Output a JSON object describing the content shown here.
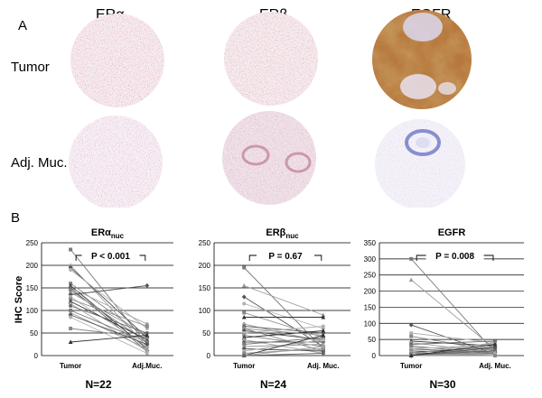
{
  "panel_a": {
    "letter": "A",
    "markers": [
      "ERα",
      "ERβ",
      "EGFR"
    ],
    "rows": [
      "Tumor",
      "Adj. Muc."
    ]
  },
  "panel_b": {
    "letter": "B",
    "y_axis_title": "IHC Score"
  },
  "chart_data": [
    {
      "type": "line",
      "title": "ERα",
      "title_subscript": "nuc",
      "categories": [
        "Tumor",
        "Adj.Muc."
      ],
      "ylabel": "IHC Score",
      "ylim": [
        0,
        250
      ],
      "yticks": [
        0,
        50,
        100,
        150,
        200,
        250
      ],
      "grid": true,
      "annotation": "P < 0.001",
      "n_label": "N=22",
      "pairs": [
        [
          235,
          25
        ],
        [
          200,
          20
        ],
        [
          195,
          40
        ],
        [
          190,
          60
        ],
        [
          160,
          40
        ],
        [
          155,
          15
        ],
        [
          150,
          70
        ],
        [
          150,
          10
        ],
        [
          145,
          30
        ],
        [
          140,
          45
        ],
        [
          135,
          155
        ],
        [
          130,
          20
        ],
        [
          125,
          65
        ],
        [
          120,
          35
        ],
        [
          115,
          10
        ],
        [
          110,
          50
        ],
        [
          100,
          30
        ],
        [
          95,
          15
        ],
        [
          90,
          25
        ],
        [
          85,
          5
        ],
        [
          60,
          40
        ],
        [
          30,
          45
        ]
      ]
    },
    {
      "type": "line",
      "title": "ERβ",
      "title_subscript": "nuc",
      "categories": [
        "Tumor",
        "Adj. Muc."
      ],
      "ylabel": "",
      "ylim": [
        0,
        250
      ],
      "yticks": [
        0,
        50,
        100,
        150,
        200,
        250
      ],
      "grid": true,
      "annotation": "P = 0.67",
      "n_label": "N=24",
      "pairs": [
        [
          195,
          15
        ],
        [
          155,
          90
        ],
        [
          130,
          20
        ],
        [
          115,
          60
        ],
        [
          95,
          40
        ],
        [
          85,
          85
        ],
        [
          70,
          30
        ],
        [
          65,
          50
        ],
        [
          60,
          10
        ],
        [
          60,
          45
        ],
        [
          55,
          35
        ],
        [
          50,
          65
        ],
        [
          45,
          20
        ],
        [
          40,
          55
        ],
        [
          35,
          5
        ],
        [
          30,
          30
        ],
        [
          25,
          40
        ],
        [
          20,
          25
        ],
        [
          15,
          10
        ],
        [
          10,
          35
        ],
        [
          5,
          15
        ],
        [
          0,
          45
        ],
        [
          0,
          20
        ],
        [
          0,
          5
        ]
      ]
    },
    {
      "type": "line",
      "title": "EGFR",
      "title_subscript": "",
      "categories": [
        "Tumor",
        "Adj. Muc."
      ],
      "ylabel": "",
      "ylim": [
        0,
        350
      ],
      "yticks": [
        0,
        50,
        100,
        150,
        200,
        250,
        300,
        350
      ],
      "grid": true,
      "annotation": "P = 0.008",
      "n_label": "N=30",
      "pairs": [
        [
          300,
          10
        ],
        [
          235,
          20
        ],
        [
          95,
          5
        ],
        [
          70,
          40
        ],
        [
          60,
          15
        ],
        [
          45,
          30
        ],
        [
          40,
          10
        ],
        [
          35,
          45
        ],
        [
          30,
          5
        ],
        [
          25,
          20
        ],
        [
          20,
          10
        ],
        [
          20,
          35
        ],
        [
          15,
          5
        ],
        [
          10,
          25
        ],
        [
          10,
          0
        ],
        [
          5,
          15
        ],
        [
          5,
          5
        ],
        [
          5,
          40
        ],
        [
          0,
          10
        ],
        [
          0,
          0
        ],
        [
          0,
          20
        ],
        [
          0,
          5
        ],
        [
          0,
          30
        ],
        [
          0,
          15
        ],
        [
          0,
          0
        ],
        [
          0,
          10
        ],
        [
          0,
          25
        ],
        [
          0,
          5
        ],
        [
          0,
          0
        ],
        [
          0,
          35
        ]
      ]
    }
  ]
}
